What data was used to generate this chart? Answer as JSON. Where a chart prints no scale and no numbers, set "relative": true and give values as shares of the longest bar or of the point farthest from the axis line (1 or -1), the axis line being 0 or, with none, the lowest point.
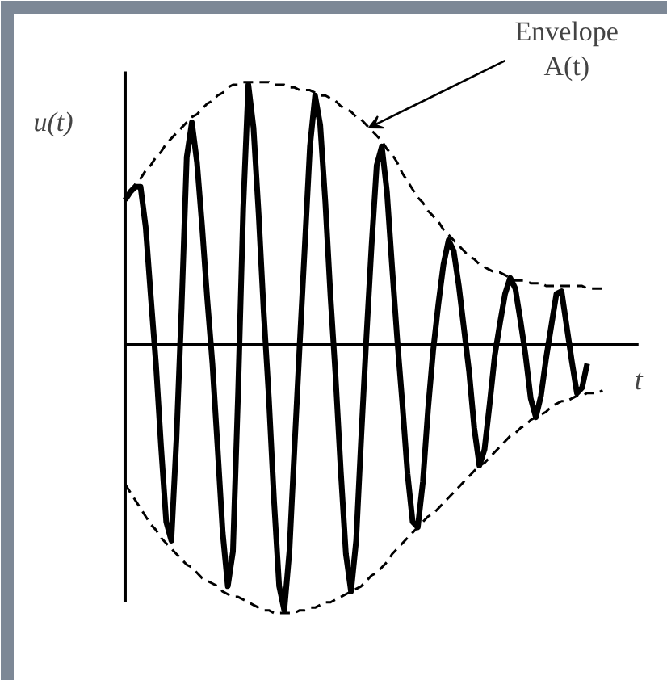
{
  "chart_data": {
    "type": "line",
    "relative": true,
    "xlabel": "t",
    "ylabel": "u(t)",
    "categories": [
      null,
      null,
      null,
      null,
      null,
      null,
      null,
      null,
      null,
      null,
      null,
      null,
      null,
      null,
      null,
      null,
      null,
      null,
      null,
      null,
      null,
      null,
      null,
      null,
      null,
      null,
      null,
      null,
      null,
      null,
      null,
      null,
      null,
      null,
      null,
      null,
      null,
      null,
      null,
      null,
      null,
      null,
      null,
      null,
      null,
      null,
      null,
      null,
      null,
      null,
      null,
      null,
      null,
      null,
      null,
      null,
      null,
      null,
      null,
      null,
      null,
      null,
      null,
      null,
      null,
      null,
      null,
      null,
      null,
      null,
      null,
      null,
      null,
      null,
      null,
      null,
      null,
      null,
      null,
      null,
      null,
      null,
      null,
      null,
      null,
      null,
      null,
      null,
      null,
      null,
      null,
      null,
      null,
      null,
      null
    ],
    "series": [
      {
        "color": "#000000",
        "line_style": "solid",
        "values": [
          0.54,
          0.57,
          0.59,
          0.59,
          0.44,
          0.18,
          -0.07,
          -0.38,
          -0.66,
          -0.73,
          -0.35,
          0.14,
          0.7,
          0.83,
          0.68,
          0.44,
          0.17,
          -0.07,
          -0.38,
          -0.7,
          -0.9,
          -0.77,
          -0.18,
          0.51,
          0.97,
          0.81,
          0.49,
          0.12,
          -0.2,
          -0.58,
          -0.9,
          -0.99,
          -0.77,
          -0.38,
          0.0,
          0.37,
          0.74,
          0.93,
          0.82,
          0.53,
          0.18,
          -0.12,
          -0.47,
          -0.78,
          -0.92,
          -0.73,
          -0.34,
          0.03,
          0.37,
          0.67,
          0.74,
          0.57,
          0.29,
          0.02,
          -0.22,
          -0.48,
          -0.66,
          -0.68,
          -0.51,
          -0.24,
          -0.02,
          0.15,
          0.3,
          0.39,
          0.35,
          0.22,
          0.06,
          -0.1,
          -0.31,
          -0.45,
          -0.39,
          -0.22,
          -0.04,
          0.08,
          0.19,
          0.25,
          0.21,
          0.09,
          -0.04,
          -0.2,
          -0.27,
          -0.19,
          -0.05,
          0.07,
          0.19,
          0.2,
          0.07,
          -0.06,
          -0.18,
          -0.16,
          -0.07,
          null,
          null,
          null,
          null
        ]
      },
      {
        "color": "#000000",
        "line_style": "dashed",
        "values": [
          null,
          0.57,
          0.6,
          0.62,
          0.65,
          0.67,
          0.7,
          0.72,
          0.75,
          0.77,
          0.79,
          0.81,
          0.83,
          0.85,
          0.86,
          0.88,
          0.9,
          0.91,
          0.93,
          0.94,
          0.96,
          0.97,
          0.97,
          0.98,
          0.98,
          0.98,
          0.98,
          0.98,
          0.98,
          0.97,
          0.97,
          0.97,
          0.96,
          0.96,
          0.95,
          0.95,
          0.95,
          0.94,
          0.93,
          0.93,
          0.92,
          0.91,
          0.89,
          0.88,
          0.87,
          0.85,
          0.84,
          0.82,
          0.8,
          0.78,
          0.76,
          0.73,
          0.71,
          0.68,
          0.64,
          0.61,
          0.58,
          0.55,
          0.53,
          0.5,
          0.48,
          0.46,
          0.43,
          0.41,
          0.39,
          0.37,
          0.35,
          0.33,
          0.32,
          0.3,
          0.29,
          0.28,
          0.27,
          0.27,
          0.26,
          0.25,
          0.24,
          0.24,
          0.24,
          0.23,
          0.23,
          0.23,
          0.22,
          0.22,
          0.22,
          0.22,
          0.22,
          0.22,
          0.22,
          0.22,
          0.21,
          0.21,
          0.21,
          0.21,
          null
        ]
      },
      {
        "color": "#000000",
        "line_style": "dashed",
        "values": [
          -0.52,
          -0.55,
          -0.58,
          -0.61,
          -0.64,
          -0.67,
          -0.69,
          -0.72,
          -0.74,
          -0.76,
          -0.78,
          -0.8,
          -0.82,
          -0.83,
          -0.85,
          -0.87,
          -0.88,
          -0.89,
          -0.9,
          -0.92,
          -0.93,
          -0.94,
          -0.94,
          -0.95,
          -0.96,
          -0.97,
          -0.98,
          -0.99,
          -0.99,
          -1.0,
          -1.0,
          -1.0,
          -1.0,
          -1.0,
          -0.99,
          -0.99,
          -0.98,
          -0.98,
          -0.97,
          -0.96,
          -0.96,
          -0.95,
          -0.94,
          -0.93,
          -0.92,
          -0.91,
          -0.9,
          -0.88,
          -0.86,
          -0.85,
          -0.83,
          -0.81,
          -0.78,
          -0.76,
          -0.74,
          -0.72,
          -0.7,
          -0.68,
          -0.66,
          -0.64,
          -0.63,
          -0.61,
          -0.59,
          -0.57,
          -0.55,
          -0.53,
          -0.51,
          -0.49,
          -0.47,
          -0.45,
          -0.44,
          -0.42,
          -0.4,
          -0.38,
          -0.36,
          -0.34,
          -0.33,
          -0.31,
          -0.3,
          -0.28,
          -0.27,
          -0.26,
          -0.25,
          -0.23,
          -0.22,
          -0.21,
          -0.21,
          -0.2,
          -0.19,
          -0.19,
          -0.18,
          -0.18,
          -0.18,
          -0.17,
          null
        ]
      }
    ],
    "annotations": [
      "Envelope\nA(t)"
    ]
  }
}
